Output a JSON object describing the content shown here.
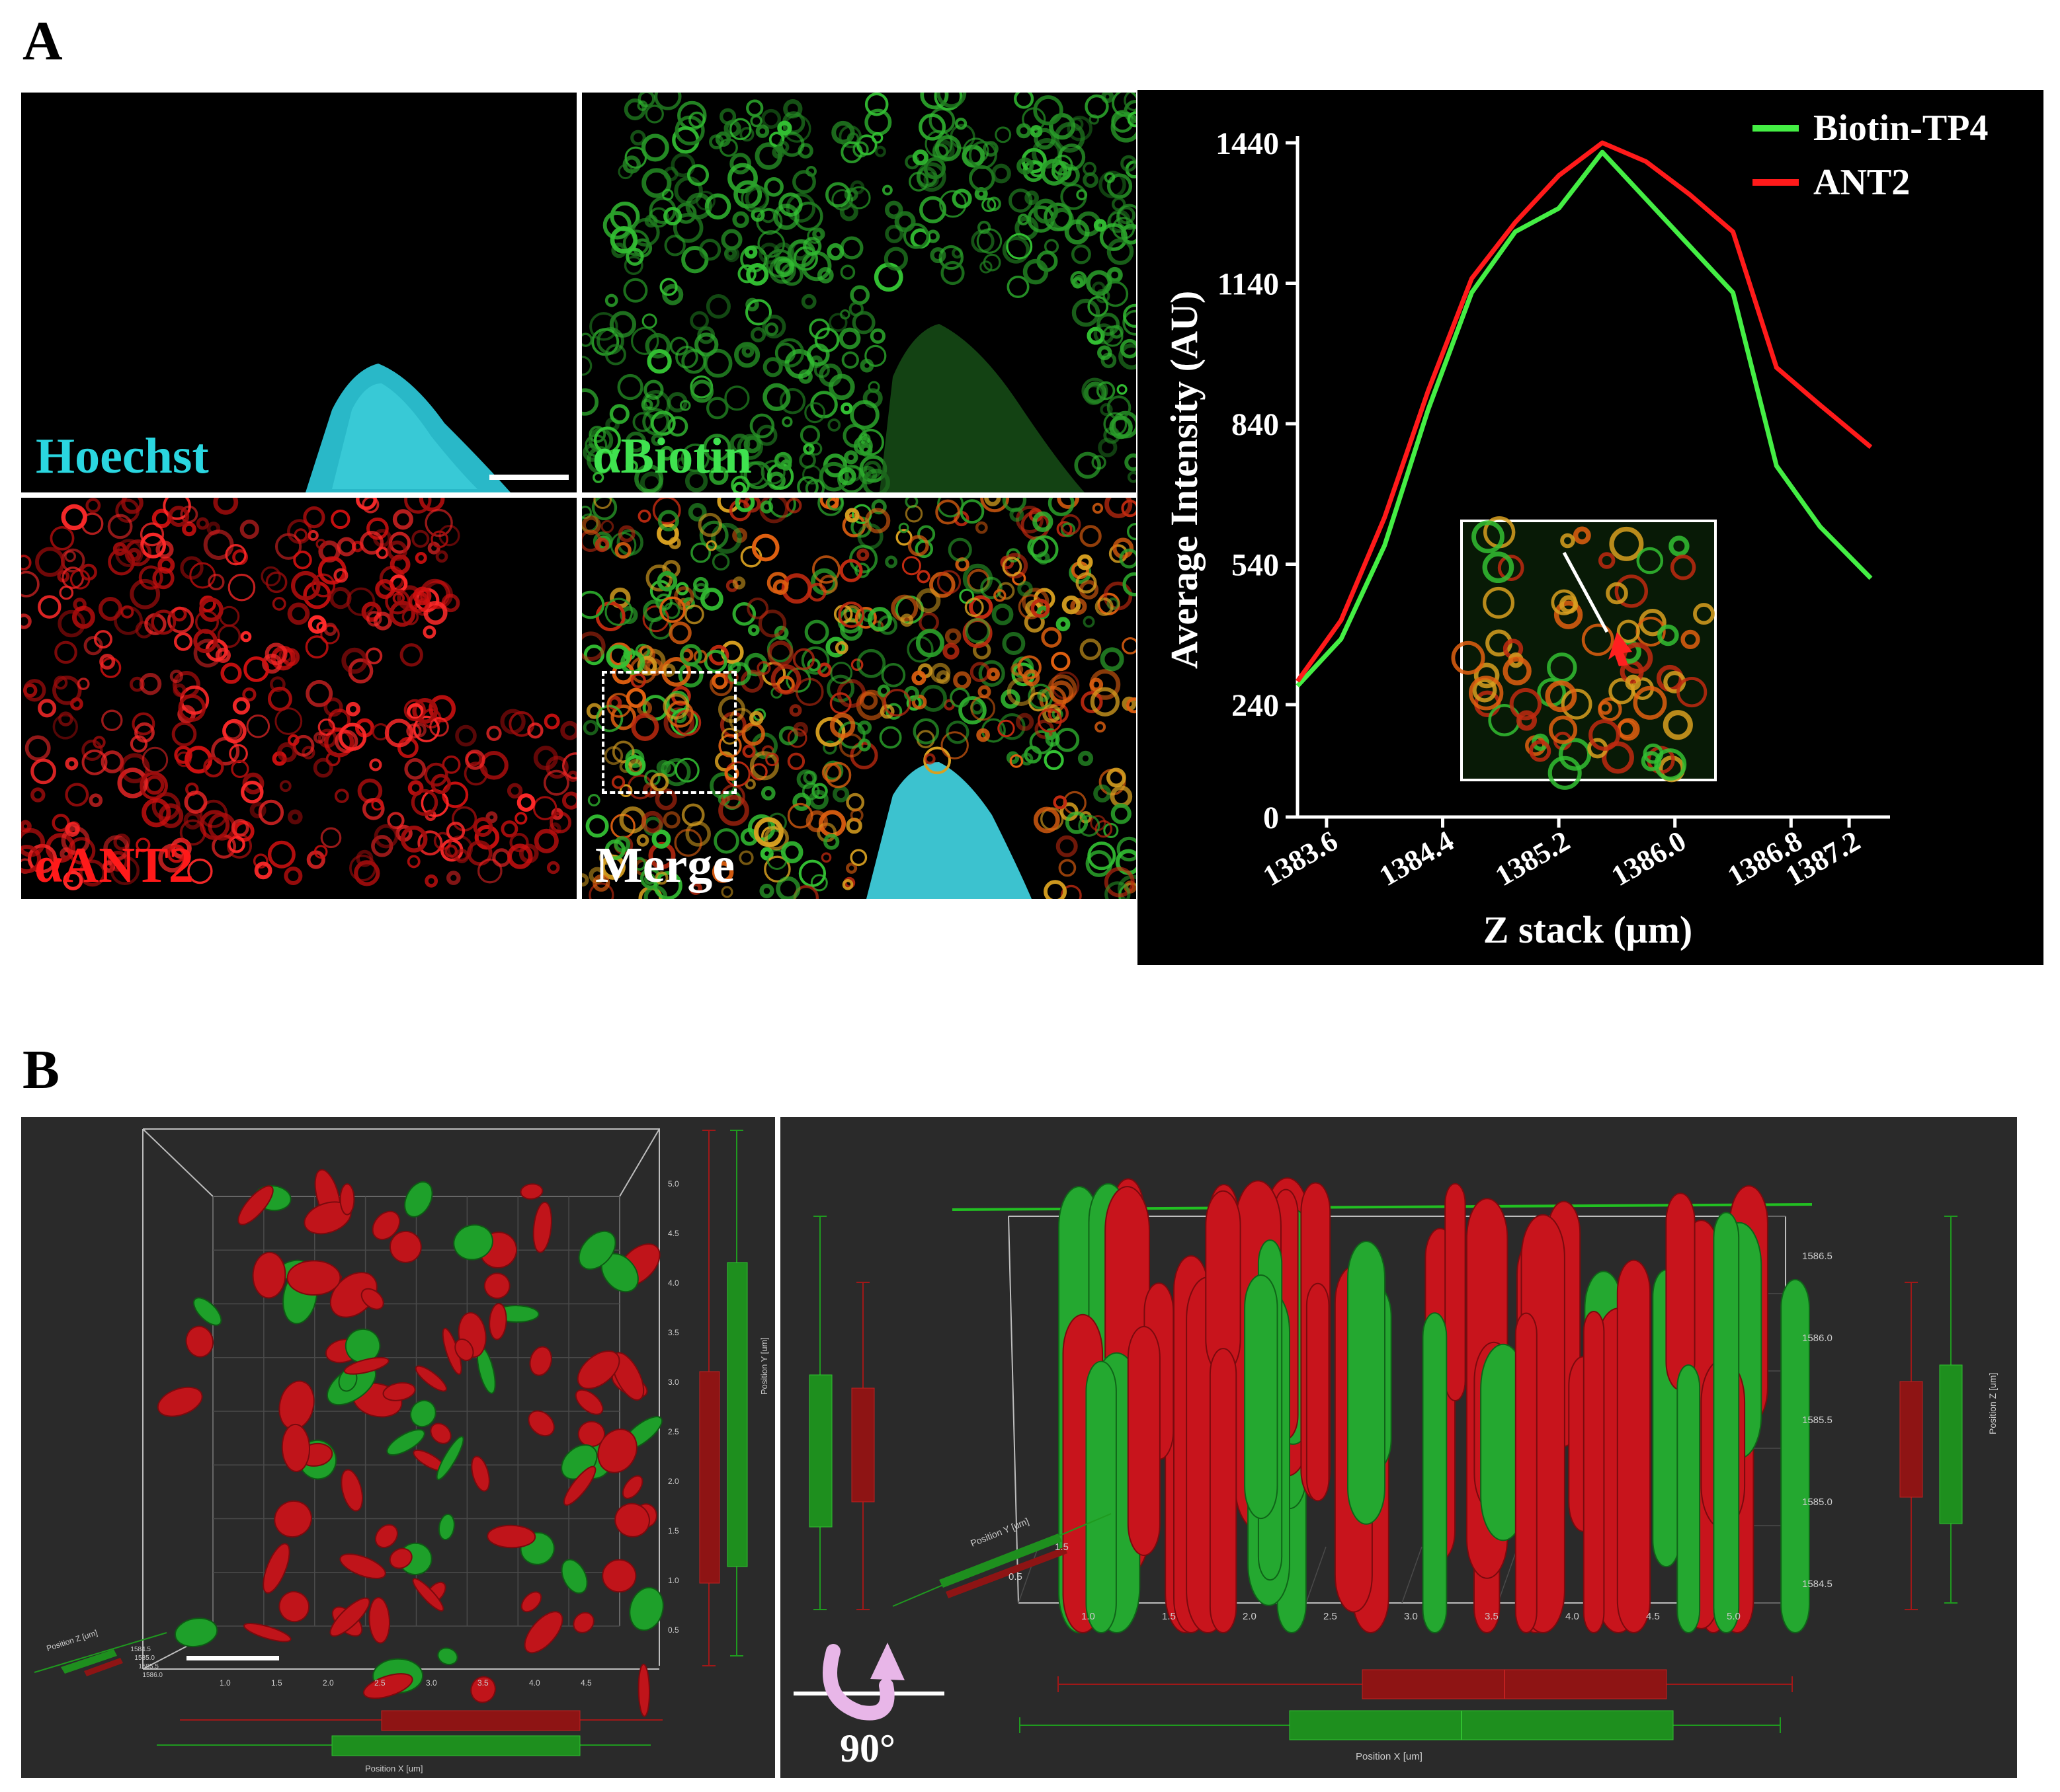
{
  "panel_a": {
    "letter": "A"
  },
  "panel_b": {
    "letter": "B"
  },
  "micrographs": {
    "hoechst": {
      "label": "Hoechst",
      "color": "#2ad6e0"
    },
    "biotin": {
      "label": "αBiotin",
      "color": "#3fe24f"
    },
    "ant2": {
      "label": "αANT2",
      "color": "#ff1a1a"
    },
    "merge": {
      "label": "Merge",
      "color": "#ffffff"
    }
  },
  "chart_data": {
    "type": "line",
    "xlabel": "Z stack (μm)",
    "ylabel": "Average Intensity (AU)",
    "xlim": [
      1383.4,
      1387.4
    ],
    "ylim": [
      0,
      1440
    ],
    "x_ticks": [
      "1383.6",
      "1384.4",
      "1385.2",
      "1386.0",
      "1386.8",
      "1387.2"
    ],
    "y_ticks": [
      "0",
      "240",
      "540",
      "840",
      "1140",
      "1440"
    ],
    "legend_position": "top-right",
    "series": [
      {
        "name": "Biotin-TP4",
        "color": "#44ee44",
        "x": [
          1383.4,
          1383.7,
          1384.0,
          1384.3,
          1384.6,
          1384.9,
          1385.2,
          1385.5,
          1385.8,
          1386.1,
          1386.4,
          1386.7,
          1387.0,
          1387.35
        ],
        "y": [
          280,
          380,
          580,
          870,
          1120,
          1250,
          1300,
          1420,
          1320,
          1220,
          1120,
          750,
          620,
          510
        ]
      },
      {
        "name": "ANT2",
        "color": "#ff1a1a",
        "x": [
          1383.4,
          1383.7,
          1384.0,
          1384.3,
          1384.6,
          1384.9,
          1385.2,
          1385.5,
          1385.8,
          1386.1,
          1386.4,
          1386.7,
          1387.0,
          1387.35
        ],
        "y": [
          290,
          420,
          640,
          910,
          1150,
          1270,
          1370,
          1440,
          1400,
          1330,
          1250,
          960,
          880,
          790
        ]
      }
    ]
  },
  "scene_left": {
    "y_axis_label": "Position Y [um]",
    "x_axis_label": "Position X [um]",
    "z_axis_label": "Position Z [um]",
    "x_ticks": [
      "1.0",
      "1.5",
      "2.0",
      "2.5",
      "3.0",
      "3.5",
      "4.0",
      "4.5"
    ],
    "y_ticks": [
      "0.5",
      "1.0",
      "1.5",
      "2.0",
      "2.5",
      "3.0",
      "3.5",
      "4.0",
      "4.5",
      "5.0"
    ],
    "z_ticks": [
      "1584.5",
      "1585.0",
      "1585.5",
      "1586.0"
    ]
  },
  "scene_right": {
    "z_axis_label": "Position Z [um]",
    "x_axis_label": "Position X [um]",
    "y_axis_label": "Position Y [um]",
    "z_ticks": [
      "1586.5",
      "1586.0",
      "1585.5",
      "1585.0",
      "1584.5"
    ],
    "x_ticks": [
      "1.0",
      "1.5",
      "2.0",
      "2.5",
      "3.0",
      "3.5",
      "4.0",
      "4.5",
      "5.0"
    ],
    "y_ticks": [
      "0.5",
      "1.5"
    ],
    "rotation_label": "90°"
  }
}
